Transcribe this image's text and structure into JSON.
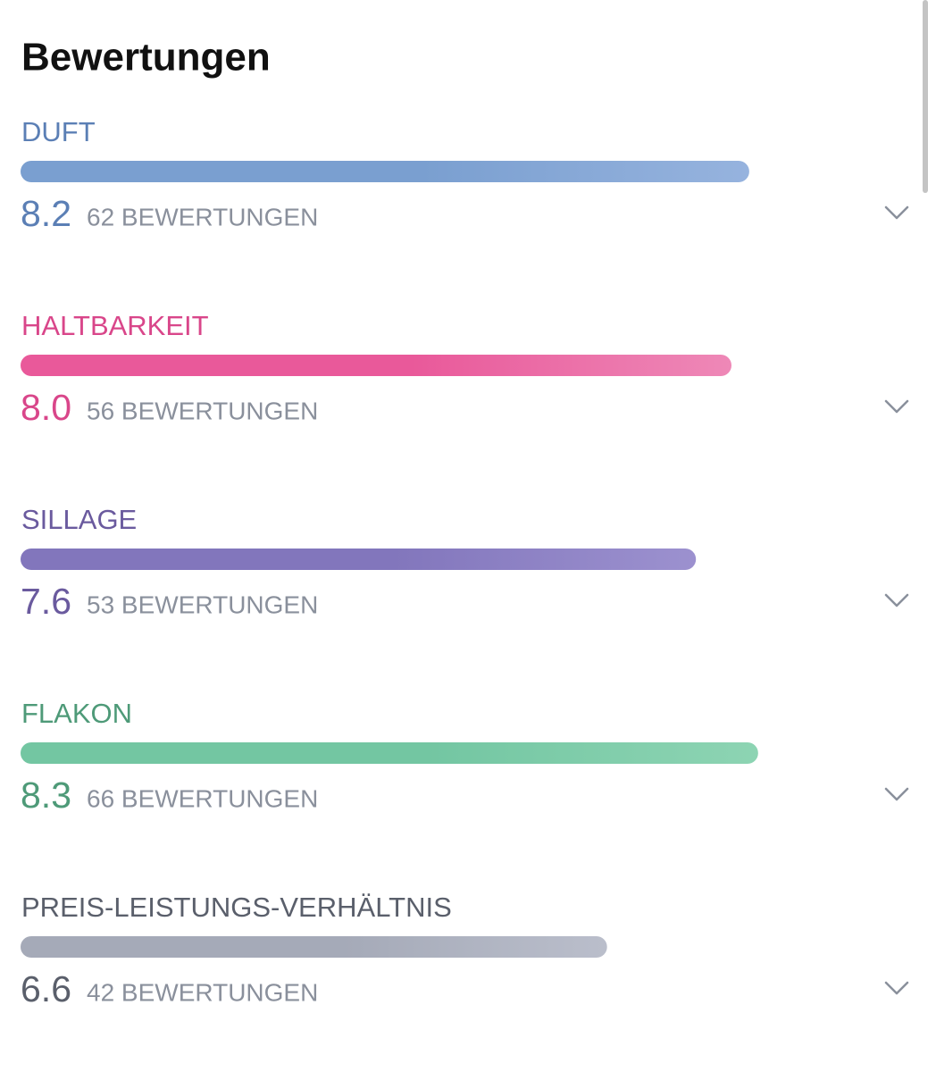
{
  "header": {
    "title": "Bewertungen"
  },
  "ratings": [
    {
      "label": "DUFT",
      "score": 8.2,
      "count": "62 BEWERTUNGEN",
      "color": "#5b7fb5",
      "bar_colors": [
        "#7a9fd0",
        "#96b3de"
      ]
    },
    {
      "label": "HALTBARKEIT",
      "score": 8,
      "score_label": "8.0",
      "count": "56 BEWERTUNGEN",
      "color": "#d9468a",
      "bar_colors": [
        "#e9599a",
        "#ee88b7"
      ]
    },
    {
      "label": "SILLAGE",
      "score": 7.6,
      "count": "53 BEWERTUNGEN",
      "color": "#6a5a9e",
      "bar_colors": [
        "#8276bc",
        "#9c91cf"
      ]
    },
    {
      "label": "FLAKON",
      "score": 8.3,
      "count": "66 BEWERTUNGEN",
      "color": "#4e9a78",
      "bar_colors": [
        "#73c6a2",
        "#8dd4b3"
      ]
    },
    {
      "label": "PREIS-LEISTUNGS-VERHÄLTNIS",
      "score": 6.6,
      "count": "42 BEWERTUNGEN",
      "color": "#5a5f6b",
      "bar_colors": [
        "#a5aab8",
        "#babecb"
      ]
    }
  ]
}
